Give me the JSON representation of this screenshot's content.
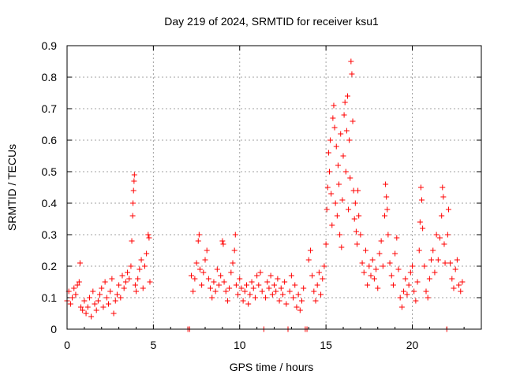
{
  "chart_data": {
    "type": "scatter",
    "title": "Day 219 of 2024, SRMTID for receiver ksu1",
    "xlabel": "GPS time / hours",
    "ylabel": "SRMTID / TECUs",
    "xlim": [
      0,
      24
    ],
    "ylim": [
      0,
      0.9
    ],
    "xticks": [
      0,
      5,
      10,
      15,
      20
    ],
    "yticks": [
      0,
      0.1,
      0.2,
      0.3,
      0.4,
      0.5,
      0.6,
      0.7,
      0.8,
      0.9
    ],
    "xtick_labels": [
      "0",
      "5",
      "10",
      "15",
      "20"
    ],
    "ytick_labels": [
      "0",
      "0.1",
      "0.2",
      "0.3",
      "0.4",
      "0.5",
      "0.6",
      "0.7",
      "0.8",
      "0.9"
    ],
    "grid": true,
    "marker": "plus",
    "color": "#ff0000",
    "series": [
      {
        "name": "SRMTID",
        "points": [
          [
            0.0,
            0.09
          ],
          [
            0.1,
            0.12
          ],
          [
            0.2,
            0.08
          ],
          [
            0.3,
            0.1
          ],
          [
            0.4,
            0.13
          ],
          [
            0.5,
            0.11
          ],
          [
            0.6,
            0.14
          ],
          [
            0.7,
            0.15
          ],
          [
            0.75,
            0.21
          ],
          [
            0.8,
            0.07
          ],
          [
            0.9,
            0.06
          ],
          [
            1.0,
            0.09
          ],
          [
            1.1,
            0.05
          ],
          [
            1.2,
            0.07
          ],
          [
            1.3,
            0.1
          ],
          [
            1.4,
            0.04
          ],
          [
            1.5,
            0.12
          ],
          [
            1.6,
            0.08
          ],
          [
            1.7,
            0.06
          ],
          [
            1.8,
            0.09
          ],
          [
            1.9,
            0.11
          ],
          [
            2.0,
            0.13
          ],
          [
            2.1,
            0.07
          ],
          [
            2.2,
            0.15
          ],
          [
            2.3,
            0.1
          ],
          [
            2.4,
            0.08
          ],
          [
            2.5,
            0.12
          ],
          [
            2.6,
            0.16
          ],
          [
            2.7,
            0.05
          ],
          [
            2.8,
            0.09
          ],
          [
            2.9,
            0.11
          ],
          [
            3.0,
            0.14
          ],
          [
            3.1,
            0.1
          ],
          [
            3.2,
            0.17
          ],
          [
            3.3,
            0.13
          ],
          [
            3.4,
            0.15
          ],
          [
            3.5,
            0.18
          ],
          [
            3.6,
            0.16
          ],
          [
            3.7,
            0.2
          ],
          [
            3.75,
            0.28
          ],
          [
            3.8,
            0.36
          ],
          [
            3.82,
            0.4
          ],
          [
            3.85,
            0.44
          ],
          [
            3.88,
            0.47
          ],
          [
            3.9,
            0.49
          ],
          [
            3.95,
            0.14
          ],
          [
            4.0,
            0.12
          ],
          [
            4.1,
            0.16
          ],
          [
            4.2,
            0.19
          ],
          [
            4.3,
            0.22
          ],
          [
            4.4,
            0.13
          ],
          [
            4.5,
            0.2
          ],
          [
            4.6,
            0.24
          ],
          [
            4.7,
            0.3
          ],
          [
            4.75,
            0.29
          ],
          [
            4.8,
            0.15
          ],
          [
            7.0,
            0.0
          ],
          [
            7.1,
            0.0
          ],
          [
            7.2,
            0.17
          ],
          [
            7.3,
            0.12
          ],
          [
            7.4,
            0.16
          ],
          [
            7.5,
            0.21
          ],
          [
            7.6,
            0.28
          ],
          [
            7.65,
            0.3
          ],
          [
            7.7,
            0.19
          ],
          [
            7.8,
            0.14
          ],
          [
            7.9,
            0.18
          ],
          [
            8.0,
            0.22
          ],
          [
            8.1,
            0.25
          ],
          [
            8.2,
            0.16
          ],
          [
            8.3,
            0.13
          ],
          [
            8.4,
            0.1
          ],
          [
            8.5,
            0.15
          ],
          [
            8.6,
            0.12
          ],
          [
            8.7,
            0.19
          ],
          [
            8.8,
            0.14
          ],
          [
            8.9,
            0.17
          ],
          [
            9.0,
            0.28
          ],
          [
            9.05,
            0.27
          ],
          [
            9.1,
            0.15
          ],
          [
            9.2,
            0.12
          ],
          [
            9.3,
            0.09
          ],
          [
            9.4,
            0.13
          ],
          [
            9.5,
            0.18
          ],
          [
            9.6,
            0.21
          ],
          [
            9.7,
            0.25
          ],
          [
            9.75,
            0.3
          ],
          [
            9.8,
            0.14
          ],
          [
            9.9,
            0.11
          ],
          [
            10.0,
            0.16
          ],
          [
            10.1,
            0.13
          ],
          [
            10.2,
            0.09
          ],
          [
            10.3,
            0.12
          ],
          [
            10.4,
            0.14
          ],
          [
            10.5,
            0.08
          ],
          [
            10.6,
            0.11
          ],
          [
            10.7,
            0.15
          ],
          [
            10.8,
            0.13
          ],
          [
            10.9,
            0.1
          ],
          [
            11.0,
            0.17
          ],
          [
            11.1,
            0.14
          ],
          [
            11.2,
            0.18
          ],
          [
            11.3,
            0.12
          ],
          [
            11.4,
            0.0
          ],
          [
            11.5,
            0.1
          ],
          [
            11.6,
            0.15
          ],
          [
            11.7,
            0.13
          ],
          [
            11.8,
            0.17
          ],
          [
            11.9,
            0.11
          ],
          [
            12.0,
            0.14
          ],
          [
            12.1,
            0.12
          ],
          [
            12.2,
            0.16
          ],
          [
            12.3,
            0.09
          ],
          [
            12.4,
            0.13
          ],
          [
            12.5,
            0.11
          ],
          [
            12.6,
            0.15
          ],
          [
            12.7,
            0.08
          ],
          [
            12.8,
            0.0
          ],
          [
            12.9,
            0.12
          ],
          [
            13.0,
            0.17
          ],
          [
            13.1,
            0.1
          ],
          [
            13.2,
            0.14
          ],
          [
            13.3,
            0.07
          ],
          [
            13.4,
            0.11
          ],
          [
            13.5,
            0.06
          ],
          [
            13.6,
            0.09
          ],
          [
            13.7,
            0.13
          ],
          [
            13.8,
            0.0
          ],
          [
            13.9,
            0.0
          ],
          [
            14.0,
            0.22
          ],
          [
            14.1,
            0.25
          ],
          [
            14.2,
            0.17
          ],
          [
            14.3,
            0.12
          ],
          [
            14.4,
            0.09
          ],
          [
            14.5,
            0.14
          ],
          [
            14.6,
            0.18
          ],
          [
            14.7,
            0.11
          ],
          [
            14.8,
            0.16
          ],
          [
            14.9,
            0.2
          ],
          [
            15.0,
            0.27
          ],
          [
            15.05,
            0.38
          ],
          [
            15.1,
            0.45
          ],
          [
            15.15,
            0.56
          ],
          [
            15.2,
            0.5
          ],
          [
            15.25,
            0.6
          ],
          [
            15.3,
            0.43
          ],
          [
            15.35,
            0.33
          ],
          [
            15.4,
            0.67
          ],
          [
            15.45,
            0.71
          ],
          [
            15.5,
            0.64
          ],
          [
            15.55,
            0.4
          ],
          [
            15.6,
            0.58
          ],
          [
            15.65,
            0.36
          ],
          [
            15.7,
            0.52
          ],
          [
            15.75,
            0.46
          ],
          [
            15.8,
            0.3
          ],
          [
            15.85,
            0.62
          ],
          [
            15.9,
            0.26
          ],
          [
            15.95,
            0.41
          ],
          [
            16.0,
            0.55
          ],
          [
            16.05,
            0.68
          ],
          [
            16.1,
            0.72
          ],
          [
            16.15,
            0.5
          ],
          [
            16.2,
            0.63
          ],
          [
            16.25,
            0.74
          ],
          [
            16.3,
            0.38
          ],
          [
            16.35,
            0.6
          ],
          [
            16.4,
            0.48
          ],
          [
            16.45,
            0.85
          ],
          [
            16.5,
            0.81
          ],
          [
            16.55,
            0.66
          ],
          [
            16.6,
            0.44
          ],
          [
            16.65,
            0.35
          ],
          [
            16.7,
            0.4
          ],
          [
            16.75,
            0.31
          ],
          [
            16.8,
            0.27
          ],
          [
            16.85,
            0.44
          ],
          [
            16.9,
            0.36
          ],
          [
            17.0,
            0.3
          ],
          [
            17.1,
            0.21
          ],
          [
            17.2,
            0.18
          ],
          [
            17.3,
            0.25
          ],
          [
            17.4,
            0.14
          ],
          [
            17.5,
            0.2
          ],
          [
            17.6,
            0.17
          ],
          [
            17.7,
            0.22
          ],
          [
            17.8,
            0.16
          ],
          [
            17.9,
            0.19
          ],
          [
            18.0,
            0.13
          ],
          [
            18.1,
            0.24
          ],
          [
            18.2,
            0.28
          ],
          [
            18.3,
            0.2
          ],
          [
            18.4,
            0.36
          ],
          [
            18.45,
            0.46
          ],
          [
            18.5,
            0.42
          ],
          [
            18.55,
            0.38
          ],
          [
            18.6,
            0.3
          ],
          [
            18.7,
            0.21
          ],
          [
            18.8,
            0.17
          ],
          [
            18.9,
            0.14
          ],
          [
            19.0,
            0.24
          ],
          [
            19.1,
            0.29
          ],
          [
            19.2,
            0.19
          ],
          [
            19.3,
            0.1
          ],
          [
            19.4,
            0.07
          ],
          [
            19.5,
            0.12
          ],
          [
            19.6,
            0.16
          ],
          [
            19.7,
            0.11
          ],
          [
            19.8,
            0.14
          ],
          [
            19.9,
            0.18
          ],
          [
            20.0,
            0.2
          ],
          [
            20.1,
            0.12
          ],
          [
            20.2,
            0.09
          ],
          [
            20.3,
            0.15
          ],
          [
            20.4,
            0.25
          ],
          [
            20.45,
            0.34
          ],
          [
            20.5,
            0.45
          ],
          [
            20.55,
            0.41
          ],
          [
            20.6,
            0.32
          ],
          [
            20.7,
            0.2
          ],
          [
            20.8,
            0.12
          ],
          [
            20.9,
            0.1
          ],
          [
            21.0,
            0.16
          ],
          [
            21.1,
            0.22
          ],
          [
            21.2,
            0.25
          ],
          [
            21.3,
            0.18
          ],
          [
            21.4,
            0.3
          ],
          [
            21.5,
            0.22
          ],
          [
            21.6,
            0.29
          ],
          [
            21.7,
            0.36
          ],
          [
            21.75,
            0.45
          ],
          [
            21.8,
            0.42
          ],
          [
            21.85,
            0.27
          ],
          [
            21.9,
            0.21
          ],
          [
            22.0,
            0.0
          ],
          [
            22.05,
            0.3
          ],
          [
            22.1,
            0.38
          ],
          [
            22.2,
            0.21
          ],
          [
            22.3,
            0.16
          ],
          [
            22.4,
            0.13
          ],
          [
            22.5,
            0.19
          ],
          [
            22.6,
            0.22
          ],
          [
            22.7,
            0.14
          ],
          [
            22.8,
            0.12
          ],
          [
            22.9,
            0.15
          ]
        ]
      }
    ]
  }
}
